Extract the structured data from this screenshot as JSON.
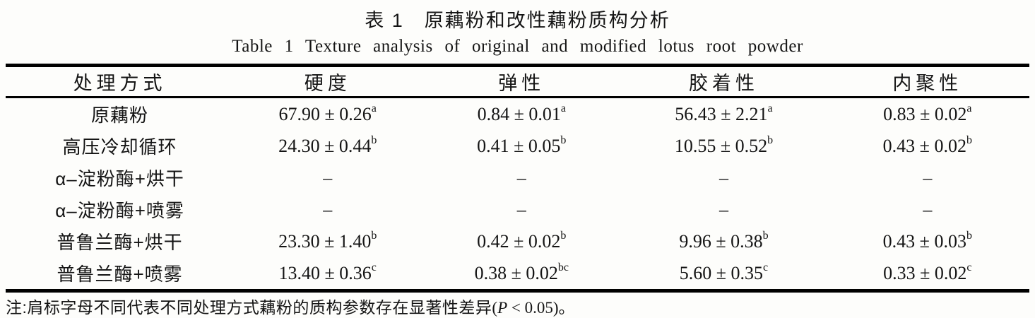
{
  "page": {
    "title_zh": "表 1　原藕粉和改性藕粉质构分析",
    "title_en": "Table 1  Texture analysis of original and modified lotus root powder"
  },
  "table": {
    "columns": [
      "处理方式",
      "硬度",
      "弹性",
      "胶着性",
      "内聚性"
    ],
    "rows": [
      {
        "label": "原藕粉",
        "values": [
          {
            "v": "67.90 ± 0.26",
            "sup": "a"
          },
          {
            "v": "0.84 ± 0.01",
            "sup": "a"
          },
          {
            "v": "56.43 ± 2.21",
            "sup": "a"
          },
          {
            "v": "0.83 ± 0.02",
            "sup": "a"
          }
        ]
      },
      {
        "label": "高压冷却循环",
        "values": [
          {
            "v": "24.30 ± 0.44",
            "sup": "b"
          },
          {
            "v": "0.41 ± 0.05",
            "sup": "b"
          },
          {
            "v": "10.55 ± 0.52",
            "sup": "b"
          },
          {
            "v": "0.43 ± 0.02",
            "sup": "b"
          }
        ]
      },
      {
        "label": "α–淀粉酶+烘干",
        "values": [
          {
            "v": "–",
            "sup": ""
          },
          {
            "v": "–",
            "sup": ""
          },
          {
            "v": "–",
            "sup": ""
          },
          {
            "v": "–",
            "sup": ""
          }
        ]
      },
      {
        "label": "α–淀粉酶+喷雾",
        "values": [
          {
            "v": "–",
            "sup": ""
          },
          {
            "v": "–",
            "sup": ""
          },
          {
            "v": "–",
            "sup": ""
          },
          {
            "v": "–",
            "sup": ""
          }
        ]
      },
      {
        "label": "普鲁兰酶+烘干",
        "values": [
          {
            "v": "23.30 ± 1.40",
            "sup": "b"
          },
          {
            "v": "0.42 ± 0.02",
            "sup": "b"
          },
          {
            "v": "9.96 ± 0.38",
            "sup": "b"
          },
          {
            "v": "0.43 ± 0.03",
            "sup": "b"
          }
        ]
      },
      {
        "label": "普鲁兰酶+喷雾",
        "values": [
          {
            "v": "13.40 ± 0.36",
            "sup": "c"
          },
          {
            "v": "0.38 ± 0.02",
            "sup": "bc"
          },
          {
            "v": "5.60 ± 0.35",
            "sup": "c"
          },
          {
            "v": "0.33 ± 0.02",
            "sup": "c"
          }
        ]
      }
    ]
  },
  "note": {
    "prefix": "注:肩标字母不同代表不同处理方式藕粉的质构参数存在显著性差异",
    "stat_open": "(",
    "stat_var": "P",
    "stat_rest": " < 0.05)。"
  },
  "colors": {
    "text": "#141414",
    "rule": "#000000",
    "background": "#fdfdfb"
  }
}
